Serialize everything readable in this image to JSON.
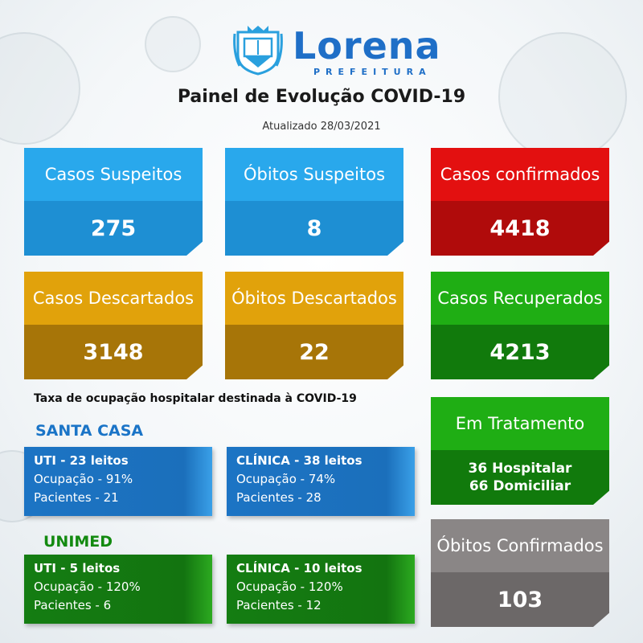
{
  "header": {
    "logo_name": "Lorena",
    "logo_sub": "PREFEITURA",
    "title": "Painel de Evolução COVID-19",
    "updated": "Atualizado 28/03/2021"
  },
  "stats": {
    "casos_suspeitos": {
      "label": "Casos Suspeitos",
      "value": "275"
    },
    "obitos_suspeitos": {
      "label": "Óbitos Suspeitos",
      "value": "8"
    },
    "casos_confirmados": {
      "label": "Casos confirmados",
      "value": "4418"
    },
    "casos_descartados": {
      "label": "Casos Descartados",
      "value": "3148"
    },
    "obitos_descartados": {
      "label": "Óbitos Descartados",
      "value": "22"
    },
    "casos_recuperados": {
      "label": "Casos Recuperados",
      "value": "4213"
    },
    "em_tratamento": {
      "label": "Em Tratamento",
      "hospitalar": "36 Hospitalar",
      "domiciliar": "66 Domiciliar"
    },
    "obitos_confirmados": {
      "label": "Óbitos Confirmados",
      "value": "103"
    }
  },
  "occupancy": {
    "title": "Taxa de ocupação hospitalar destinada à COVID-19",
    "santa_casa": {
      "name": "SANTA CASA",
      "uti": {
        "head": "UTI - 23 leitos",
        "ocupacao": "Ocupação - 91%",
        "pacientes": "Pacientes - 21"
      },
      "clinica": {
        "head": "CLÍNICA - 38 leitos",
        "ocupacao": "Ocupação - 74%",
        "pacientes": "Pacientes - 28"
      }
    },
    "unimed": {
      "name": "UNIMED",
      "uti": {
        "head": "UTI - 5 leitos",
        "ocupacao": "Ocupação - 120%",
        "pacientes": "Pacientes - 6"
      },
      "clinica": {
        "head": "CLÍNICA - 10 leitos",
        "ocupacao": "Ocupação - 120%",
        "pacientes": "Pacientes - 12"
      }
    }
  },
  "colors": {
    "brand_blue": "#1f6fc7",
    "santa_casa_title": "#1a74c7",
    "unimed_title": "#138a10"
  }
}
